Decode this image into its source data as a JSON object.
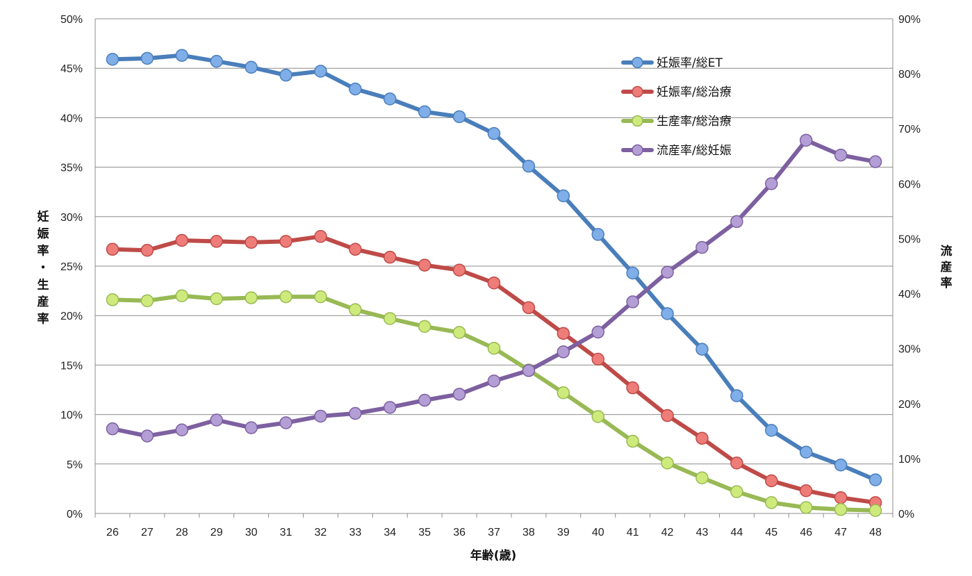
{
  "chart_data": {
    "type": "line",
    "title": "",
    "xlabel": "年齢(歳)",
    "ylabel_left": "妊娠率・生産率",
    "ylabel_right": "流産率",
    "x": [
      "26",
      "27",
      "28",
      "29",
      "30",
      "31",
      "32",
      "33",
      "34",
      "35",
      "36",
      "37",
      "38",
      "39",
      "40",
      "41",
      "42",
      "43",
      "44",
      "45",
      "46",
      "47",
      "48"
    ],
    "ylim_left": [
      0,
      50
    ],
    "yticks_left": [
      "0%",
      "5%",
      "10%",
      "15%",
      "20%",
      "25%",
      "30%",
      "35%",
      "40%",
      "45%",
      "50%"
    ],
    "ylim_right": [
      0,
      90
    ],
    "yticks_right": [
      "0%",
      "10%",
      "20%",
      "30%",
      "40%",
      "50%",
      "60%",
      "70%",
      "80%",
      "90%"
    ],
    "grid": true,
    "legend_position": "top-right",
    "series": [
      {
        "name": "妊娠率/総ET",
        "axis": "left",
        "color": "#4A7EBB",
        "marker": "#7FAEE8",
        "values": [
          45.9,
          46.0,
          46.3,
          45.7,
          45.1,
          44.3,
          44.7,
          42.9,
          41.9,
          40.6,
          40.1,
          38.4,
          35.1,
          32.1,
          28.2,
          24.3,
          20.2,
          16.6,
          11.9,
          8.4,
          6.2,
          4.9,
          3.4
        ]
      },
      {
        "name": "妊娠率/総治療",
        "axis": "left",
        "color": "#BE4B48",
        "marker": "#EE7C79",
        "values": [
          26.7,
          26.6,
          27.6,
          27.5,
          27.4,
          27.5,
          28.0,
          26.7,
          25.9,
          25.1,
          24.6,
          23.3,
          20.8,
          18.2,
          15.6,
          12.7,
          9.9,
          7.6,
          5.1,
          3.3,
          2.3,
          1.6,
          1.1
        ]
      },
      {
        "name": "生産率/総治療",
        "axis": "left",
        "color": "#98B954",
        "marker": "#CFEA7C",
        "values": [
          21.6,
          21.5,
          22.0,
          21.7,
          21.8,
          21.9,
          21.9,
          20.6,
          19.7,
          18.9,
          18.3,
          16.7,
          14.5,
          12.2,
          9.8,
          7.3,
          5.1,
          3.6,
          2.2,
          1.1,
          0.6,
          0.4,
          0.3
        ]
      },
      {
        "name": "流産率/総妊娠",
        "axis": "right",
        "color": "#7D60A0",
        "marker": "#B39ED6",
        "values": [
          15.4,
          14.1,
          15.2,
          17.0,
          15.6,
          16.5,
          17.7,
          18.2,
          19.3,
          20.6,
          21.7,
          24.1,
          26.0,
          29.4,
          33.0,
          38.5,
          43.9,
          48.4,
          53.1,
          60.0,
          67.9,
          65.2,
          64.0
        ]
      }
    ]
  }
}
